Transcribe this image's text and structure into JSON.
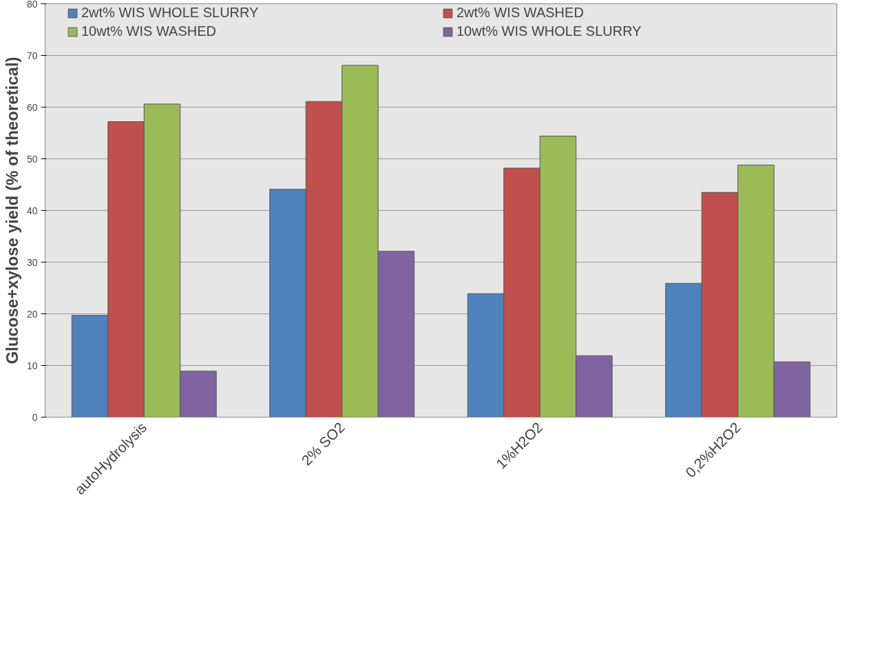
{
  "chart_data": {
    "type": "bar",
    "ylabel": "Glucose+xylose yield (% of theoretical)",
    "categories": [
      "autoHydrolysis",
      "2% SO2",
      "1%H2O2",
      "0,2%H2O2"
    ],
    "series": [
      {
        "name": "2wt% WIS WHOLE SLURRY",
        "color": "#4f81bd",
        "values": [
          19.7,
          44.1,
          23.9,
          25.9
        ]
      },
      {
        "name": "2wt% WIS WASHED",
        "color": "#c0504d",
        "values": [
          57.2,
          61.1,
          48.2,
          43.5
        ]
      },
      {
        "name": "10wt% WIS WASHED",
        "color": "#9bbb59",
        "values": [
          60.6,
          68.1,
          54.4,
          48.8
        ]
      },
      {
        "name": "10wt% WIS WHOLE SLURRY",
        "color": "#8064a2",
        "values": [
          8.9,
          32.1,
          11.9,
          10.7
        ]
      }
    ],
    "ylim": [
      0,
      80
    ],
    "yticks": [
      0,
      10,
      20,
      30,
      40,
      50,
      60,
      70,
      80
    ],
    "grid": "y",
    "legend": "top"
  }
}
